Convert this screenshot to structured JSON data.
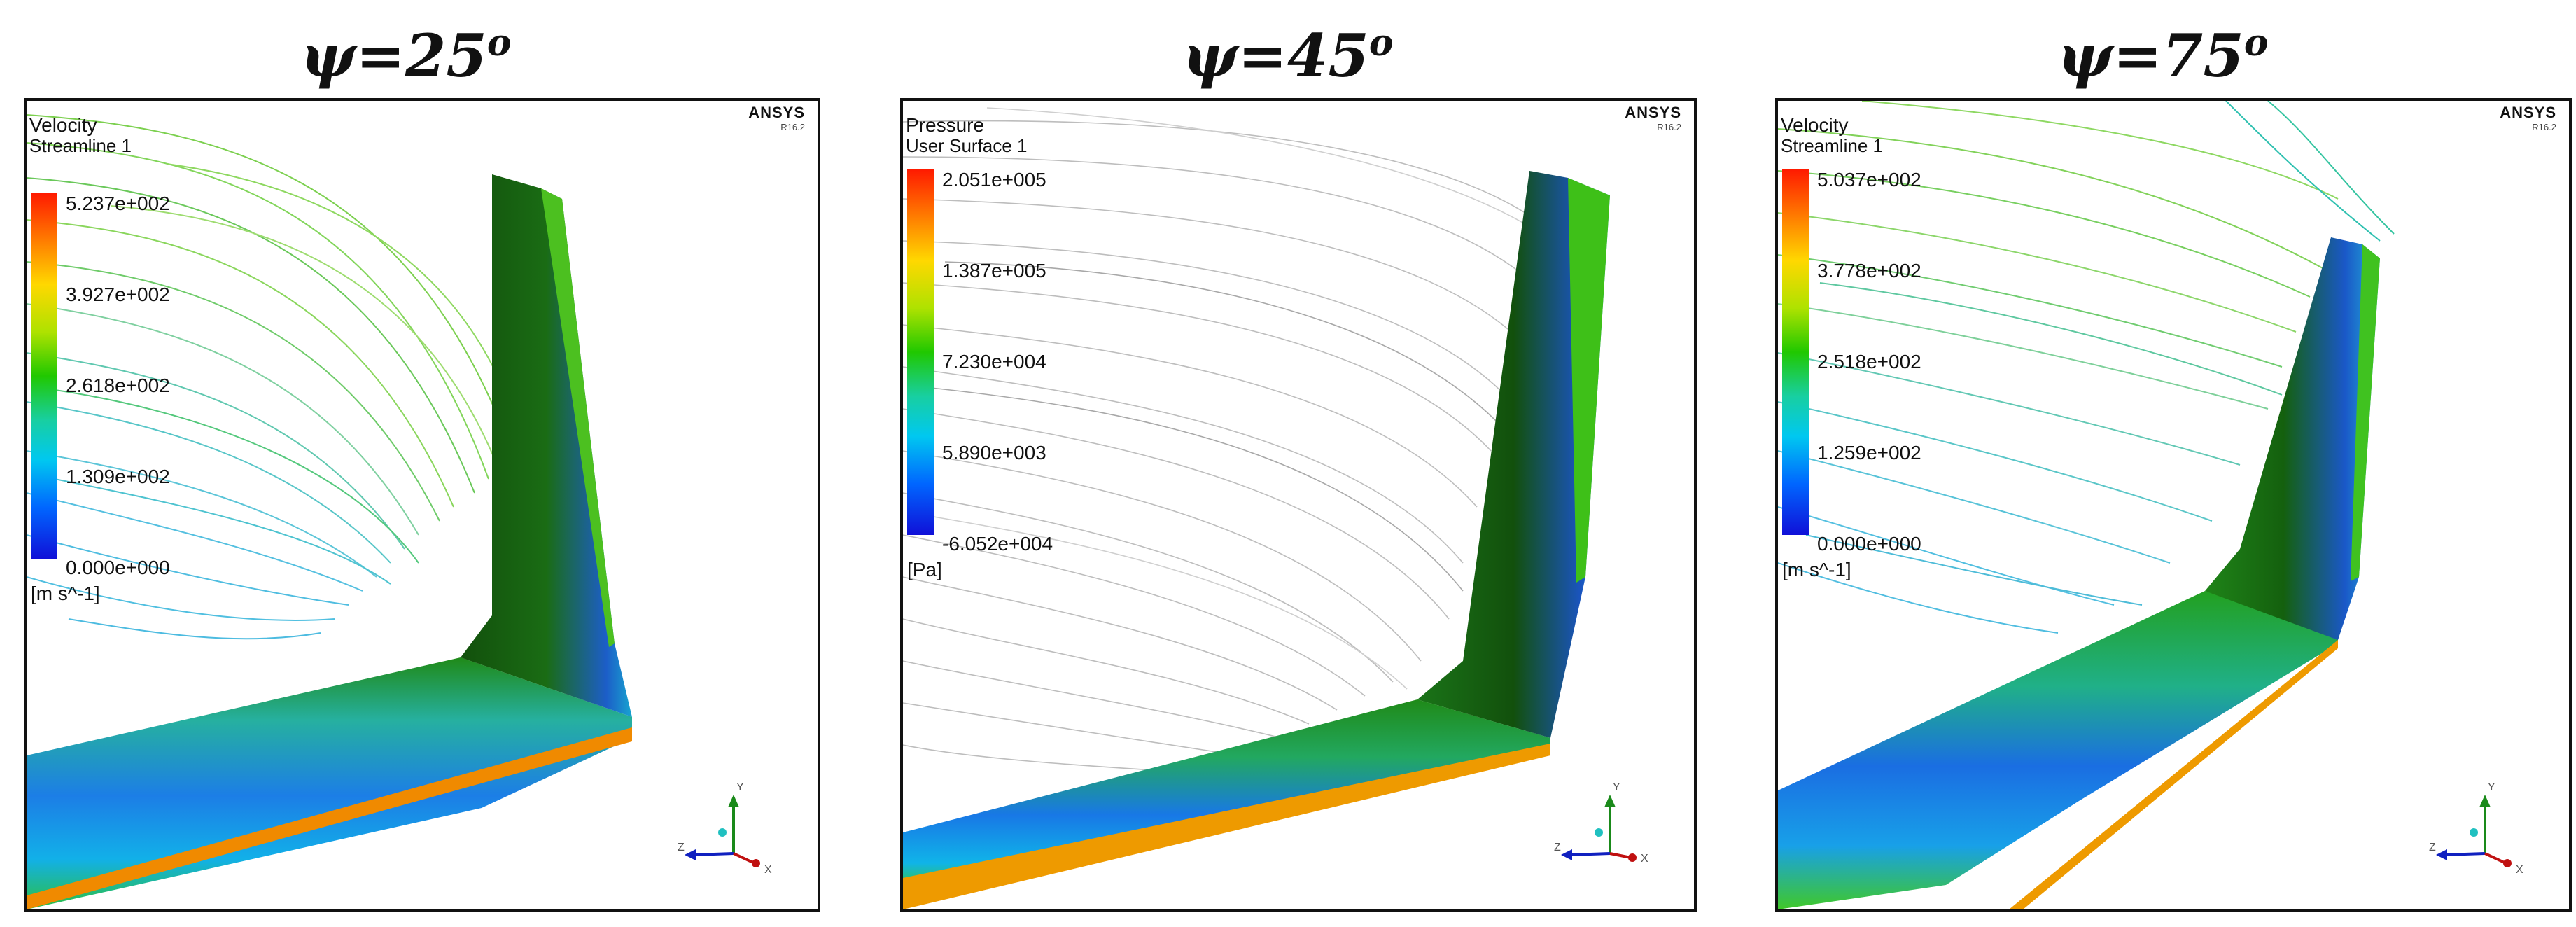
{
  "panels": [
    {
      "title": "ψ=25",
      "title_sup": "o",
      "brand": "ANSYS",
      "version": "R16.2",
      "legend_title": "Velocity",
      "legend_sub": "Streamline 1",
      "ticks": [
        "5.237e+002",
        "3.927e+002",
        "2.618e+002",
        "1.309e+002",
        "0.000e+000"
      ],
      "unit": "[m s^-1]",
      "axis_labels": {
        "y": "Y",
        "x": "X",
        "z": "Z"
      }
    },
    {
      "title": "ψ=45",
      "title_sup": "o",
      "brand": "ANSYS",
      "version": "R16.2",
      "legend_title": "Pressure",
      "legend_sub": "User Surface 1",
      "ticks": [
        "2.051e+005",
        "1.387e+005",
        "7.230e+004",
        "5.890e+003",
        "-6.052e+004"
      ],
      "unit": "[Pa]",
      "axis_labels": {
        "y": "Y",
        "x": "X",
        "z": "Z"
      }
    },
    {
      "title": "ψ=75",
      "title_sup": "o",
      "brand": "ANSYS",
      "version": "R16.2",
      "legend_title": "Velocity",
      "legend_sub": "Streamline 1",
      "ticks": [
        "5.037e+002",
        "3.778e+002",
        "2.518e+002",
        "1.259e+002",
        "0.000e+000"
      ],
      "unit": "[m s^-1]",
      "axis_labels": {
        "y": "Y",
        "x": "X",
        "z": "Z"
      }
    }
  ],
  "colors": {
    "streamline_green": "#6cc24a",
    "streamline_cyan": "#59c9d6",
    "streamline_gray": "#b9b9b9",
    "surface_dark_green": "#1c5a12",
    "surface_green": "#24a01e",
    "surface_blue": "#1466e0",
    "edge_orange": "#f0a000",
    "edge_red": "#e02a00"
  }
}
